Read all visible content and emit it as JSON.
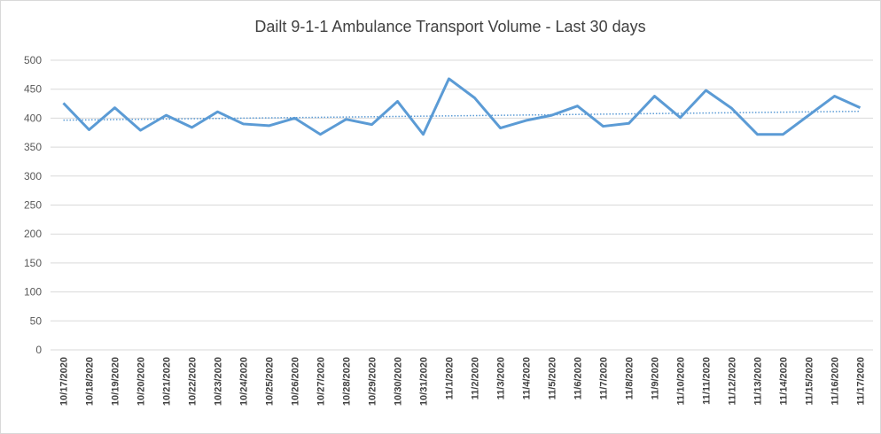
{
  "chart_data": {
    "type": "line",
    "title": "Dailt 9-1-1 Ambulance Transport Volume - Last 30 days",
    "categories": [
      "10/17/2020",
      "10/18/2020",
      "10/19/2020",
      "10/20/2020",
      "10/21/2020",
      "10/22/2020",
      "10/23/2020",
      "10/24/2020",
      "10/25/2020",
      "10/26/2020",
      "10/27/2020",
      "10/28/2020",
      "10/29/2020",
      "10/30/2020",
      "10/31/2020",
      "11/1/2020",
      "11/2/2020",
      "11/3/2020",
      "11/4/2020",
      "11/5/2020",
      "11/6/2020",
      "11/7/2020",
      "11/8/2020",
      "11/9/2020",
      "11/10/2020",
      "11/11/2020",
      "11/12/2020",
      "11/13/2020",
      "11/14/2020",
      "11/15/2020",
      "11/16/2020",
      "11/17/2020"
    ],
    "values": [
      426,
      380,
      418,
      379,
      405,
      384,
      411,
      390,
      387,
      400,
      372,
      398,
      389,
      429,
      372,
      468,
      435,
      383,
      396,
      405,
      421,
      386,
      391,
      438,
      401,
      448,
      417,
      372,
      372,
      405,
      438,
      418
    ],
    "color": "#5b9bd5",
    "trendline": true,
    "ylim": [
      0,
      500
    ],
    "yticks": [
      0,
      50,
      100,
      150,
      200,
      250,
      300,
      350,
      400,
      450,
      500
    ],
    "grid": true
  }
}
